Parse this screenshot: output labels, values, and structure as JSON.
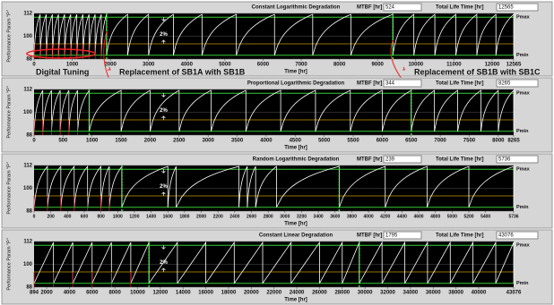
{
  "chart_data": [
    {
      "type": "line",
      "degradation": "log",
      "title": "Constant Logarithmic Degradation",
      "mtbf_label": "MTBF [hr]",
      "mtbf": 524,
      "total_label": "Total Life Time [hr]",
      "total": 12565,
      "ylabel": "Performance Param \"P\"",
      "xlabel": "Time [hr]",
      "pmax_label": "Pmax",
      "pmin_label": "Pmin",
      "delta_label": "2%",
      "ylim": [
        88,
        112
      ],
      "yticks": [
        88,
        100,
        112
      ],
      "pmax": 110,
      "pmin": 90,
      "threshold": 96,
      "xlim": [
        0,
        12565
      ],
      "xticks": [
        0,
        1000,
        2000,
        3000,
        4000,
        5000,
        6000,
        7000,
        8000,
        9000,
        10000,
        11000,
        12000,
        12565
      ],
      "replacements": [
        1900,
        9400
      ],
      "cycle_starts": [
        0,
        160,
        320,
        480,
        640,
        800,
        960,
        1120,
        1280,
        1440,
        1600,
        1760,
        1900,
        2450,
        3000,
        3650,
        4400,
        5300,
        6300,
        7300,
        8300,
        9400,
        9950,
        10500,
        11050,
        11600,
        12100
      ],
      "annotations": [
        "Digital Tuning",
        "Replacement of SB1A with SB1B",
        "Replacement of SB1B with SB1C"
      ]
    },
    {
      "type": "line",
      "degradation": "log",
      "title": "Proportional Logarithmic Degradation",
      "mtbf_label": "MTBF [hr]",
      "mtbf": 344,
      "total_label": "Total Life Time [hr]",
      "total": 8265,
      "ylabel": "Performance Param \"P\"",
      "xlabel": "Time [hr]",
      "pmax_label": "Pmax",
      "pmin_label": "Pmin",
      "delta_label": "2%",
      "ylim": [
        88,
        112
      ],
      "yticks": [
        88,
        100,
        112
      ],
      "pmax": 110,
      "pmin": 90,
      "threshold": 96,
      "xlim": [
        0,
        8265
      ],
      "xticks": [
        0,
        500,
        1000,
        1500,
        2000,
        2500,
        3000,
        3500,
        4000,
        4500,
        5000,
        5500,
        6000,
        6500,
        7000,
        7500,
        8000,
        8265
      ],
      "replacements": [
        950,
        6500
      ],
      "cycle_starts": [
        0,
        150,
        300,
        450,
        600,
        750,
        950,
        1500,
        2000,
        2500,
        3050,
        3650,
        4250,
        4850,
        5450,
        6000,
        6500,
        6900,
        7300,
        7700,
        8000
      ]
    },
    {
      "type": "line",
      "degradation": "log",
      "title": "Random Logarithmic Degradation",
      "mtbf_label": "MTBF [hr]",
      "mtbf": 239,
      "total_label": "Total Life Time [hr]",
      "total": 5736,
      "ylabel": "Performance Param \"P\"",
      "xlabel": "Time [hr]",
      "pmax_label": "Pmax",
      "pmin_label": "Pmin",
      "delta_label": "2%",
      "ylim": [
        88,
        112
      ],
      "yticks": [
        88,
        100,
        112
      ],
      "pmax": 110,
      "pmin": 90,
      "threshold": 96,
      "xlim": [
        0,
        5736
      ],
      "xticks": [
        0,
        200,
        400,
        600,
        800,
        1000,
        1200,
        1400,
        1600,
        1800,
        2000,
        2200,
        2400,
        2600,
        2800,
        3000,
        3200,
        3400,
        3600,
        3800,
        4000,
        4200,
        4400,
        4600,
        4800,
        5000,
        5200,
        5400,
        5736
      ],
      "replacements": [
        1050,
        3650
      ],
      "cycle_starts": [
        0,
        160,
        320,
        480,
        640,
        800,
        900,
        1050,
        1600,
        1700,
        2450,
        2550,
        2650,
        2900,
        3650,
        4200,
        4700,
        5200
      ]
    },
    {
      "type": "line",
      "degradation": "linear",
      "title": "Constant Linear Degradation",
      "mtbf_label": "MTBF [hr]",
      "mtbf": 1795,
      "total_label": "Total Life Time [hr]",
      "total": 43076,
      "ylabel": "Performance Param \"P\"",
      "xlabel": "Time [hr]",
      "pmax_label": "Pmax",
      "pmin_label": "Pmin",
      "delta_label": "2%",
      "ylim": [
        88,
        112
      ],
      "yticks": [
        88,
        100,
        112
      ],
      "pmax": 110,
      "pmin": 90,
      "threshold": 96,
      "xlim": [
        894,
        43076
      ],
      "xticks": [
        894,
        2000,
        4000,
        6000,
        8000,
        10000,
        12000,
        14000,
        16000,
        18000,
        20000,
        22000,
        24000,
        26000,
        28000,
        30000,
        32000,
        34000,
        36000,
        38000,
        40000,
        43076
      ],
      "replacements": [
        11000,
        29500
      ],
      "cycle_starts": [
        894,
        2600,
        4300,
        6000,
        7700,
        9400,
        11000,
        13500,
        16000,
        18500,
        21000,
        23500,
        26000,
        28000,
        29500,
        31500,
        33500,
        35500,
        37500,
        39500,
        41500
      ]
    }
  ]
}
